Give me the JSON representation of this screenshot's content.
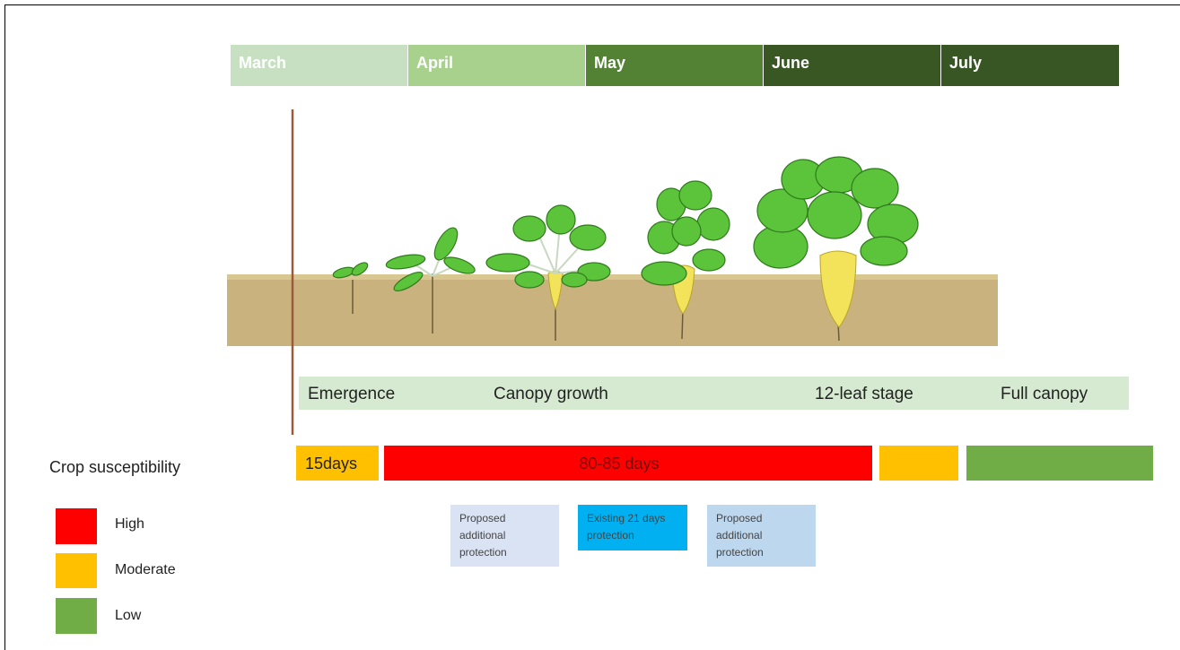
{
  "months": [
    "March",
    "April",
    "May",
    "June",
    "July"
  ],
  "stages": [
    "Emergence",
    "Canopy growth",
    "12-leaf stage",
    "Full canopy"
  ],
  "susceptibility": {
    "label": "Crop susceptibility",
    "bars": [
      "15days",
      "80-85 days"
    ]
  },
  "legend": [
    "High",
    "Moderate",
    "Low"
  ],
  "protection": [
    {
      "lines": [
        "Proposed",
        "additional",
        "protection"
      ]
    },
    {
      "lines": [
        "Existing 21 days",
        "protection"
      ]
    },
    {
      "lines": [
        "Proposed",
        "additional",
        "protection"
      ]
    }
  ]
}
